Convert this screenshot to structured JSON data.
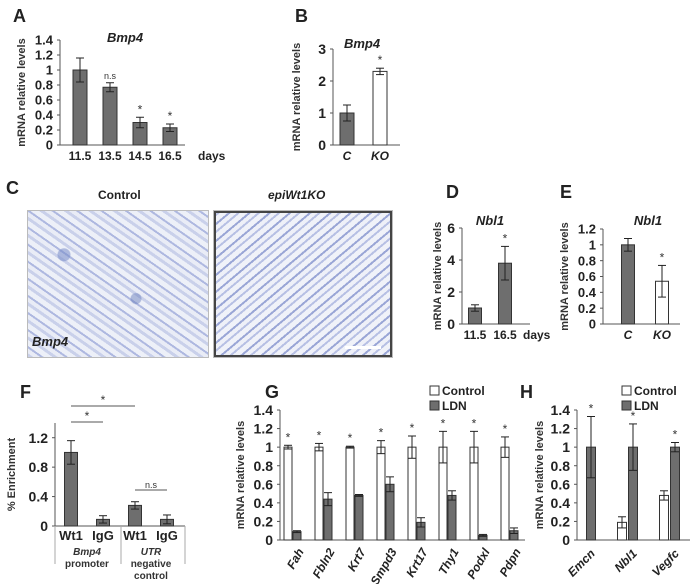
{
  "chart_data": [
    {
      "panel": "A",
      "type": "bar",
      "title": "Bmp4",
      "ylabel": "mRNA relative levels",
      "xlabel": "days",
      "ylim": [
        0,
        1.4
      ],
      "yticks": [
        "0",
        "0.2",
        "0.4",
        "0.6",
        "0.8",
        "1",
        "1.2",
        "1.4"
      ],
      "categories": [
        "11.5",
        "13.5",
        "14.5",
        "16.5"
      ],
      "series": [
        {
          "name": "",
          "color": "#6e6e6e",
          "values": [
            1.0,
            0.77,
            0.3,
            0.23
          ],
          "errors": [
            0.16,
            0.06,
            0.07,
            0.05
          ],
          "annotations": [
            "",
            "n.s",
            "*",
            "*"
          ]
        }
      ]
    },
    {
      "panel": "B",
      "type": "bar",
      "title": "Bmp4",
      "ylabel": "mRNA relative levels",
      "xlabel": "",
      "ylim": [
        0,
        3
      ],
      "yticks": [
        "0",
        "1",
        "2",
        "3"
      ],
      "categories": [
        "C",
        "KO"
      ],
      "series": [
        {
          "name": "",
          "colors": [
            "#6e6e6e",
            "#ffffff"
          ],
          "values": [
            1.0,
            2.3
          ],
          "errors": [
            0.25,
            0.1
          ],
          "annotations": [
            "",
            "*"
          ]
        }
      ]
    },
    {
      "panel": "C",
      "type": "image",
      "titles": [
        "Control",
        "epiWt1KO"
      ],
      "gene_label": "Bmp4"
    },
    {
      "panel": "D",
      "type": "bar",
      "title": "Nbl1",
      "ylabel": "mRNA relative levels",
      "xlabel": "days",
      "ylim": [
        0,
        6
      ],
      "yticks": [
        "0",
        "2",
        "4",
        "6"
      ],
      "categories": [
        "11.5",
        "16.5"
      ],
      "series": [
        {
          "name": "",
          "color": "#6e6e6e",
          "values": [
            1.0,
            3.8
          ],
          "errors": [
            0.2,
            1.05
          ],
          "annotations": [
            "",
            "*"
          ]
        }
      ]
    },
    {
      "panel": "E",
      "type": "bar",
      "title": "Nbl1",
      "ylabel": "mRNA relative levels",
      "xlabel": "",
      "ylim": [
        0,
        1.2
      ],
      "yticks": [
        "0",
        "0.2",
        "0.4",
        "0.6",
        "0.8",
        "1",
        "1.2"
      ],
      "categories": [
        "C",
        "KO"
      ],
      "series": [
        {
          "name": "",
          "colors": [
            "#6e6e6e",
            "#ffffff"
          ],
          "values": [
            1.0,
            0.54
          ],
          "errors": [
            0.08,
            0.2
          ],
          "annotations": [
            "",
            "*"
          ]
        }
      ]
    },
    {
      "panel": "F",
      "type": "bar",
      "title": "",
      "ylabel": "% Enrichment",
      "xlabel": "",
      "ylim": [
        0,
        1.4
      ],
      "yticks": [
        "0",
        "0.4",
        "0.8",
        "1.2"
      ],
      "ytick_values": [
        0,
        0.4,
        0.8,
        1.2
      ],
      "categories": [
        "Wt1",
        "IgG",
        "Wt1",
        "IgG"
      ],
      "groups": [
        {
          "line1": "Bmp4",
          "line2": "promoter"
        },
        {
          "line1": "UTR",
          "line2": "negative",
          "line3": "control"
        }
      ],
      "brackets": [
        {
          "from": 0,
          "to": 2,
          "label": "*"
        },
        {
          "from": 0,
          "to": 1,
          "label": "*"
        },
        {
          "from": 2,
          "to": 3,
          "label": "n.s"
        }
      ],
      "series": [
        {
          "name": "",
          "color": "#6e6e6e",
          "values": [
            1.0,
            0.09,
            0.28,
            0.09
          ],
          "errors": [
            0.16,
            0.05,
            0.05,
            0.06
          ],
          "annotations": [
            "",
            "",
            "",
            ""
          ]
        }
      ]
    },
    {
      "panel": "G",
      "type": "bar",
      "title": "",
      "ylabel": "mRNA relative levels",
      "xlabel": "",
      "ylim": [
        0,
        1.4
      ],
      "yticks": [
        "0",
        "0.2",
        "0.4",
        "0.6",
        "0.8",
        "1",
        "1.2",
        "1.4"
      ],
      "categories": [
        "Fah",
        "Fbln2",
        "Krt7",
        "Smpd3",
        "Krt17",
        "Thy1",
        "Podxl",
        "Pdpn"
      ],
      "legend": "top-right",
      "series": [
        {
          "name": "Control",
          "color": "#ffffff",
          "values": [
            1,
            1,
            1,
            1,
            1,
            1,
            1,
            1
          ],
          "errors": [
            0.02,
            0.04,
            0.01,
            0.07,
            0.12,
            0.17,
            0.17,
            0.11
          ],
          "annotations": [
            "*",
            "*",
            "*",
            "*",
            "*",
            "*",
            "*",
            "*"
          ]
        },
        {
          "name": "LDN",
          "color": "#6e6e6e",
          "values": [
            0.09,
            0.44,
            0.48,
            0.6,
            0.19,
            0.48,
            0.05,
            0.1
          ],
          "errors": [
            0.01,
            0.07,
            0.01,
            0.08,
            0.05,
            0.05,
            0.01,
            0.03
          ],
          "annotations": [
            "",
            "",
            "",
            "",
            "",
            "",
            "",
            ""
          ]
        }
      ]
    },
    {
      "panel": "H",
      "type": "bar",
      "title": "",
      "ylabel": "mRNA relative levels",
      "xlabel": "",
      "ylim": [
        0,
        1.4
      ],
      "yticks": [
        "0",
        "0.2",
        "0.4",
        "0.6",
        "0.8",
        "1",
        "1.2",
        "1.4"
      ],
      "categories": [
        "Emcn",
        "Nbl1",
        "Vegfc"
      ],
      "legend": "top-right",
      "series": [
        {
          "name": "Control",
          "color": "#ffffff",
          "values": [
            0.0,
            0.19,
            0.48
          ],
          "errors": [
            0,
            0.06,
            0.05
          ],
          "annotations": [
            "",
            "",
            ""
          ]
        },
        {
          "name": "LDN",
          "color": "#6e6e6e",
          "values": [
            1.0,
            1.0,
            1.0
          ],
          "errors": [
            0.33,
            0.25,
            0.05
          ],
          "annotations": [
            "*",
            "*",
            "*"
          ]
        }
      ]
    }
  ]
}
